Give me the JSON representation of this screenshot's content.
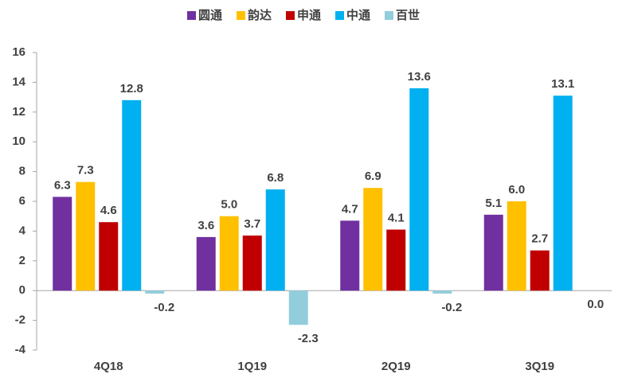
{
  "chart_data": {
    "type": "bar",
    "categories": [
      "4Q18",
      "1Q19",
      "2Q19",
      "3Q19"
    ],
    "series": [
      {
        "name": "圆通",
        "color": "#7030a0",
        "values": [
          6.3,
          3.6,
          4.7,
          5.1
        ],
        "value_labels": [
          "6.3",
          "3.6",
          "4.7",
          "5.1"
        ]
      },
      {
        "name": "韵达",
        "color": "#ffc000",
        "values": [
          7.3,
          5.0,
          6.9,
          6.0
        ],
        "value_labels": [
          "7.3",
          "5.0",
          "6.9",
          "6.0"
        ]
      },
      {
        "name": "申通",
        "color": "#c00000",
        "values": [
          4.6,
          3.7,
          4.1,
          2.7
        ],
        "value_labels": [
          "4.6",
          "3.7",
          "4.1",
          "2.7"
        ]
      },
      {
        "name": "中通",
        "color": "#00b0f0",
        "values": [
          12.8,
          6.8,
          13.6,
          13.1
        ],
        "value_labels": [
          "12.8",
          "6.8",
          "13.6",
          "13.1"
        ]
      },
      {
        "name": "百世",
        "color": "#92cddc",
        "values": [
          -0.2,
          -2.3,
          -0.2,
          0.0
        ],
        "value_labels": [
          "-0.2",
          "-2.3",
          "-0.2",
          "0.0"
        ]
      }
    ],
    "ylim": [
      -4,
      16
    ],
    "yticks": [
      -4,
      -2,
      0,
      2,
      4,
      6,
      8,
      10,
      12,
      14,
      16
    ],
    "legend": "top"
  }
}
